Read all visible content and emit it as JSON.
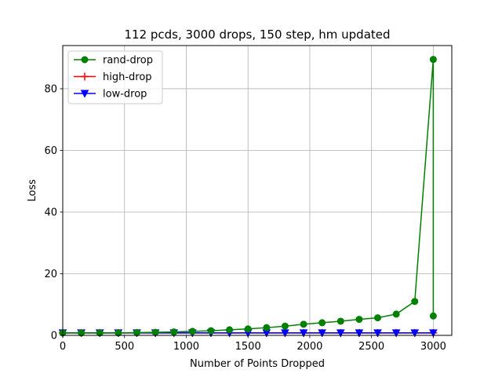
{
  "chart_data": {
    "type": "line",
    "title": "112 pcds, 3000 drops, 150 step, hm updated",
    "xlabel": "Number of Points Dropped",
    "ylabel": "Loss",
    "xlim": [
      0,
      3150
    ],
    "ylim": [
      0,
      94
    ],
    "xticks": [
      0,
      500,
      1000,
      1500,
      2000,
      2500,
      3000
    ],
    "yticks": [
      0,
      20,
      40,
      60,
      80
    ],
    "grid": true,
    "legend_position": "top-left",
    "series": [
      {
        "name": "rand-drop",
        "color": "#008000",
        "marker": "circle",
        "x": [
          0,
          150,
          300,
          450,
          600,
          750,
          900,
          1050,
          1200,
          1350,
          1500,
          1650,
          1800,
          1950,
          2100,
          2250,
          2400,
          2550,
          2700,
          2850,
          3000,
          3000
        ],
        "y": [
          0.8,
          0.8,
          0.8,
          0.8,
          0.9,
          1.0,
          1.1,
          1.3,
          1.5,
          1.8,
          2.1,
          2.5,
          3.0,
          3.6,
          4.1,
          4.6,
          5.2,
          5.7,
          6.9,
          11.0,
          89.5,
          6.3
        ]
      },
      {
        "name": "high-drop",
        "color": "#ff0000",
        "marker": "plus",
        "x": [
          0,
          150,
          300,
          450,
          600,
          750,
          900,
          1050,
          1200,
          1350,
          1500,
          1650,
          1800,
          1950,
          2100,
          2250,
          2400,
          2550,
          2700,
          2850,
          3000
        ],
        "y": [
          0.8,
          0.8,
          0.8,
          0.8,
          0.8,
          0.8,
          0.8,
          0.8,
          0.8,
          0.8,
          0.8,
          0.8,
          0.8,
          0.8,
          0.8,
          0.8,
          0.8,
          0.8,
          0.8,
          0.8,
          0.8
        ]
      },
      {
        "name": "low-drop",
        "color": "#0000ff",
        "marker": "triangle-down",
        "x": [
          0,
          150,
          300,
          450,
          600,
          750,
          900,
          1050,
          1200,
          1350,
          1500,
          1650,
          1800,
          1950,
          2100,
          2250,
          2400,
          2550,
          2700,
          2850,
          3000
        ],
        "y": [
          0.8,
          0.8,
          0.8,
          0.8,
          0.8,
          0.8,
          0.8,
          0.8,
          0.8,
          0.8,
          0.8,
          0.8,
          0.8,
          0.8,
          0.8,
          0.8,
          0.8,
          0.8,
          0.8,
          0.8,
          0.8
        ]
      }
    ]
  }
}
